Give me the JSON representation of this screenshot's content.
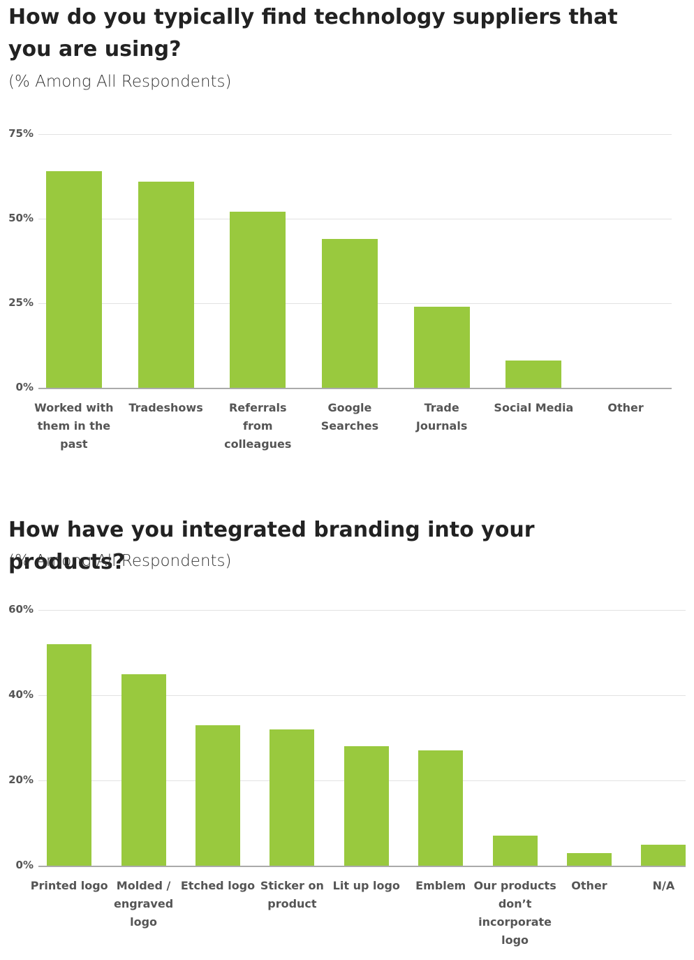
{
  "chart_data": [
    {
      "type": "bar",
      "title": "How do you typically find technology suppliers that you are using?",
      "subtitle": "(% Among All Respondents)",
      "categories": [
        "Worked with them in the past",
        "Tradeshows",
        "Referrals from colleagues",
        "Google Searches",
        "Trade Journals",
        "Social Media",
        "Other"
      ],
      "values": [
        64,
        61,
        52,
        44,
        24,
        8,
        0
      ],
      "color": "#99c93e",
      "ylim": [
        0,
        75
      ],
      "yticks": [
        {
          "value": 0,
          "label": "0%"
        },
        {
          "value": 25,
          "label": "25%"
        },
        {
          "value": 50,
          "label": "50%"
        },
        {
          "value": 75,
          "label": "75%"
        }
      ],
      "grid": true
    },
    {
      "type": "bar",
      "title": "How have you integrated branding into your products?",
      "subtitle": "(% Among All Respondents)",
      "categories": [
        "Printed logo",
        "Molded / engraved logo",
        "Etched logo",
        "Sticker on product",
        "Lit up logo",
        "Emblem",
        "Our products don’t incorporate logo",
        "Other",
        "N/A"
      ],
      "values": [
        52,
        45,
        33,
        32,
        28,
        27,
        7,
        3,
        5
      ],
      "color": "#99c93e",
      "ylim": [
        0,
        60
      ],
      "yticks": [
        {
          "value": 0,
          "label": "0%"
        },
        {
          "value": 20,
          "label": "20%"
        },
        {
          "value": 40,
          "label": "40%"
        },
        {
          "value": 60,
          "label": "60%"
        }
      ],
      "grid": true
    }
  ]
}
